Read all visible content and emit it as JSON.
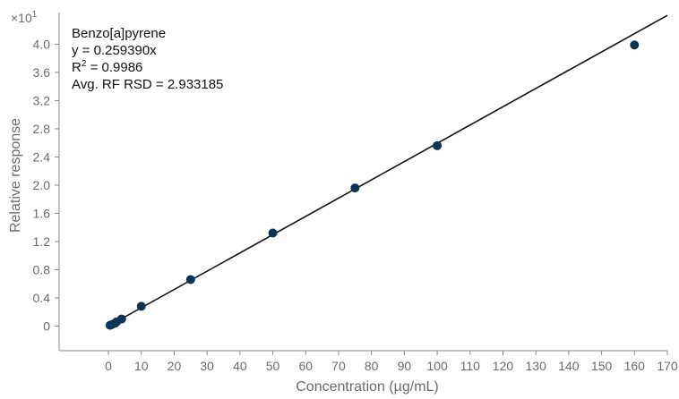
{
  "chart_data": {
    "type": "scatter",
    "title": "",
    "xlabel": "Concentration (µg/mL)",
    "ylabel": "Relative response",
    "y_multiplier_label": "×10",
    "y_multiplier_exponent": "1",
    "xlim": [
      -15,
      170
    ],
    "ylim": [
      -0.35,
      4.45
    ],
    "x_ticks": [
      0,
      10,
      20,
      30,
      40,
      50,
      60,
      70,
      80,
      90,
      100,
      110,
      120,
      130,
      140,
      150,
      160,
      170
    ],
    "y_ticks": [
      0,
      0.4,
      0.8,
      1.2,
      1.6,
      2.0,
      2.4,
      2.8,
      3.2,
      3.6,
      4.0
    ],
    "y_tick_labels": [
      "0",
      "0.4",
      "0.8",
      "1.2",
      "1.6",
      "2.0",
      "2.4",
      "2.8",
      "3.2",
      "3.6",
      "4.0"
    ],
    "grid": false,
    "series": [
      {
        "points": [
          {
            "x": 0.5,
            "y": 0.01
          },
          {
            "x": 1,
            "y": 0.02
          },
          {
            "x": 2,
            "y": 0.04
          },
          {
            "x": 2.5,
            "y": 0.06
          },
          {
            "x": 4,
            "y": 0.1
          },
          {
            "x": 10,
            "y": 0.28
          },
          {
            "x": 25,
            "y": 0.66
          },
          {
            "x": 50,
            "y": 1.32
          },
          {
            "x": 75,
            "y": 1.96
          },
          {
            "x": 100,
            "y": 2.56
          },
          {
            "x": 160,
            "y": 3.99
          }
        ],
        "color": "#0d3457"
      }
    ],
    "fit_line": {
      "slope": 0.02593901,
      "intercept": 0,
      "x_range": [
        0,
        170
      ],
      "color": "#111111"
    },
    "annotation": {
      "compound": "Benzo[a]pyrene",
      "equation": "y = 0.259390x",
      "r2_prefix": "R",
      "r2_sup": "2",
      "r2_value": " = 0.9986",
      "rsd": "Avg. RF RSD = 2.933185"
    }
  }
}
